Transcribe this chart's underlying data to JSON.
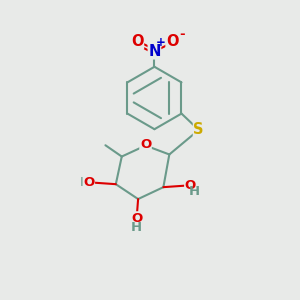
{
  "bg_color": "#e8eae8",
  "bond_color": "#6a9a8a",
  "bond_width": 1.5,
  "atom_colors": {
    "O": "#dd0000",
    "N": "#0000cc",
    "S": "#ccaa00",
    "C": "#6a9a8a"
  },
  "font_size": 9.5,
  "figsize": [
    3.0,
    3.0
  ],
  "dpi": 100,
  "xlim": [
    0,
    10
  ],
  "ylim": [
    0,
    10
  ]
}
